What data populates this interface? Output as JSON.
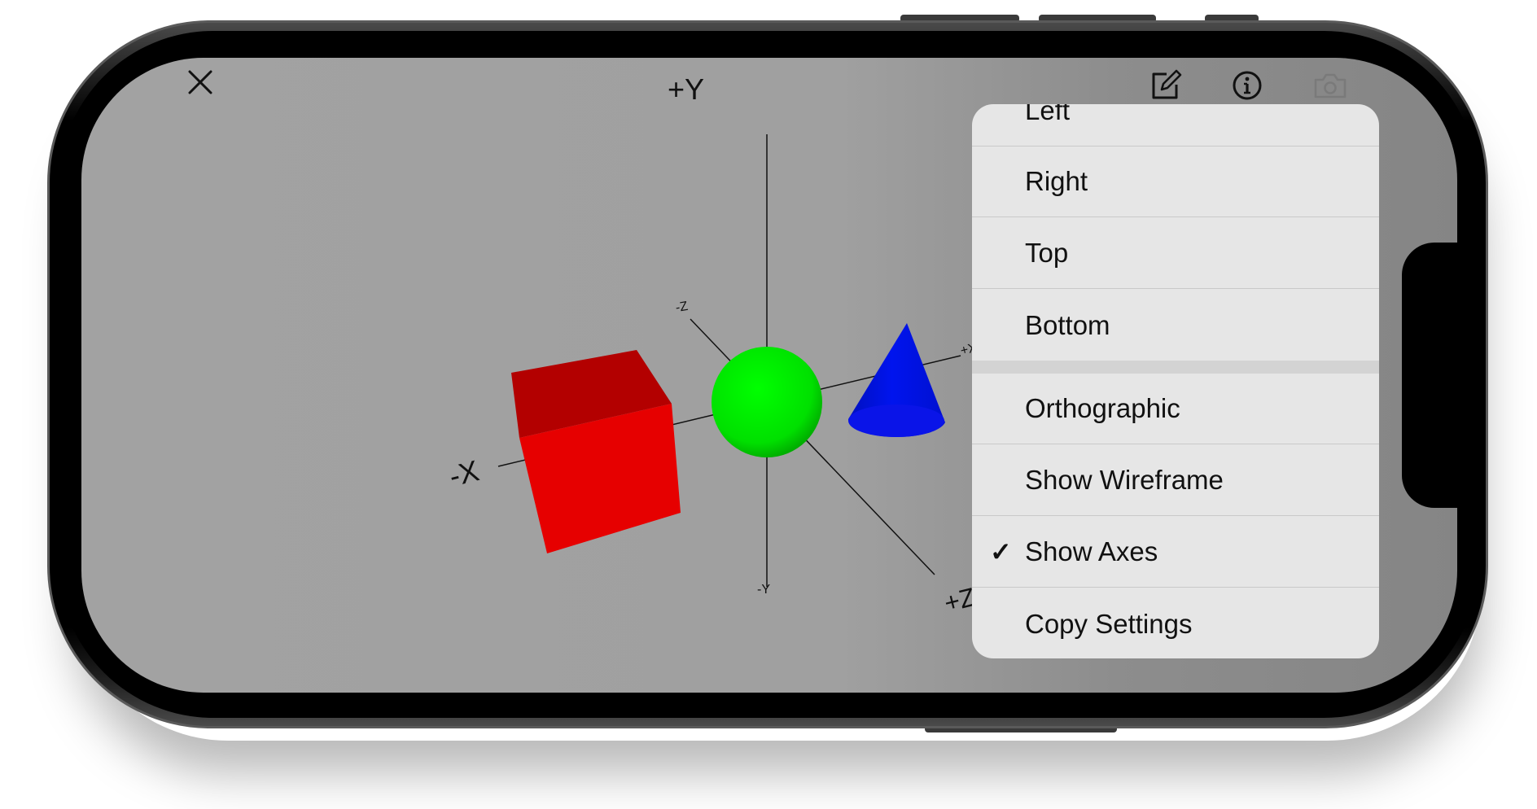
{
  "toolbar": {
    "close_icon": "close-icon",
    "edit_icon": "edit-square-pencil-icon",
    "info_icon": "info-circle-icon",
    "camera_icon": "camera-icon"
  },
  "scene": {
    "axis_labels": {
      "pos_y": "+Y",
      "neg_y": "-Y",
      "neg_x": "-X",
      "pos_x": "+X",
      "neg_z": "-Z",
      "pos_z": "+Z"
    },
    "objects": [
      {
        "name": "cube",
        "color": "#e60000"
      },
      {
        "name": "sphere",
        "color": "#00e000"
      },
      {
        "name": "cone",
        "color": "#0010e0"
      }
    ],
    "background_color": "#a0a0a0"
  },
  "menu": {
    "view_items": [
      {
        "label": "Left",
        "checked": false
      },
      {
        "label": "Right",
        "checked": false
      },
      {
        "label": "Top",
        "checked": false
      },
      {
        "label": "Bottom",
        "checked": false
      }
    ],
    "option_items": [
      {
        "label": "Orthographic",
        "checked": false
      },
      {
        "label": "Show Wireframe",
        "checked": false
      },
      {
        "label": "Show Axes",
        "checked": true,
        "check_glyph": "✓"
      },
      {
        "label": "Copy Settings",
        "checked": false
      }
    ]
  }
}
